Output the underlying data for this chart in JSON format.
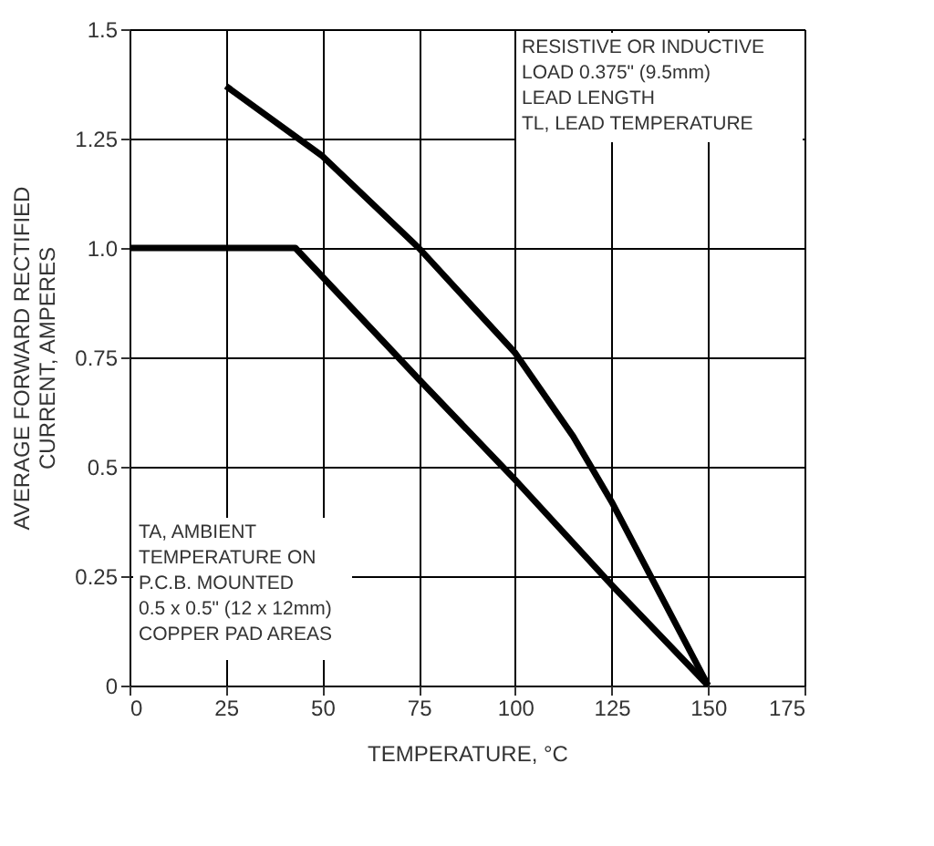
{
  "chart_data": {
    "type": "line",
    "xlabel": "TEMPERATURE, °C",
    "ylabel": "AVERAGE FORWARD RECTIFIED CURRENT, AMPERES",
    "series": [
      {
        "color": "#000000",
        "x": [
          25,
          50,
          75,
          100,
          115,
          125,
          150
        ],
        "values": [
          1.37,
          1.21,
          1.0,
          0.76,
          0.57,
          0.42,
          0
        ]
      },
      {
        "color": "#000000",
        "x": [
          0,
          43,
          75,
          100,
          125,
          150
        ],
        "values": [
          1.0,
          1.0,
          0.7,
          0.47,
          0.23,
          0
        ]
      }
    ],
    "xlim": [
      0,
      175
    ],
    "xticks": [
      0,
      25,
      50,
      75,
      100,
      125,
      150,
      175
    ],
    "ylim": [
      0,
      1.5
    ],
    "yticks": [
      0,
      0.25,
      0.5,
      0.75,
      {
        "value": 1,
        "label": "1.0"
      },
      1.25,
      {
        "value": 1.5,
        "label": "1.5"
      }
    ],
    "grid": true,
    "marker": "none",
    "line_style": "solid",
    "annotations": [
      "RESISTIVE OR INDUCTIVE\nLOAD 0.375\" (9.5mm)\nLEAD LENGTH\nTL, LEAD TEMPERATURE",
      "TA, AMBIENT\nTEMPERATURE ON\nP.C.B. MOUNTED\n0.5 x 0.5\" (12 x 12mm)\nCOPPER PAD AREAS"
    ]
  }
}
